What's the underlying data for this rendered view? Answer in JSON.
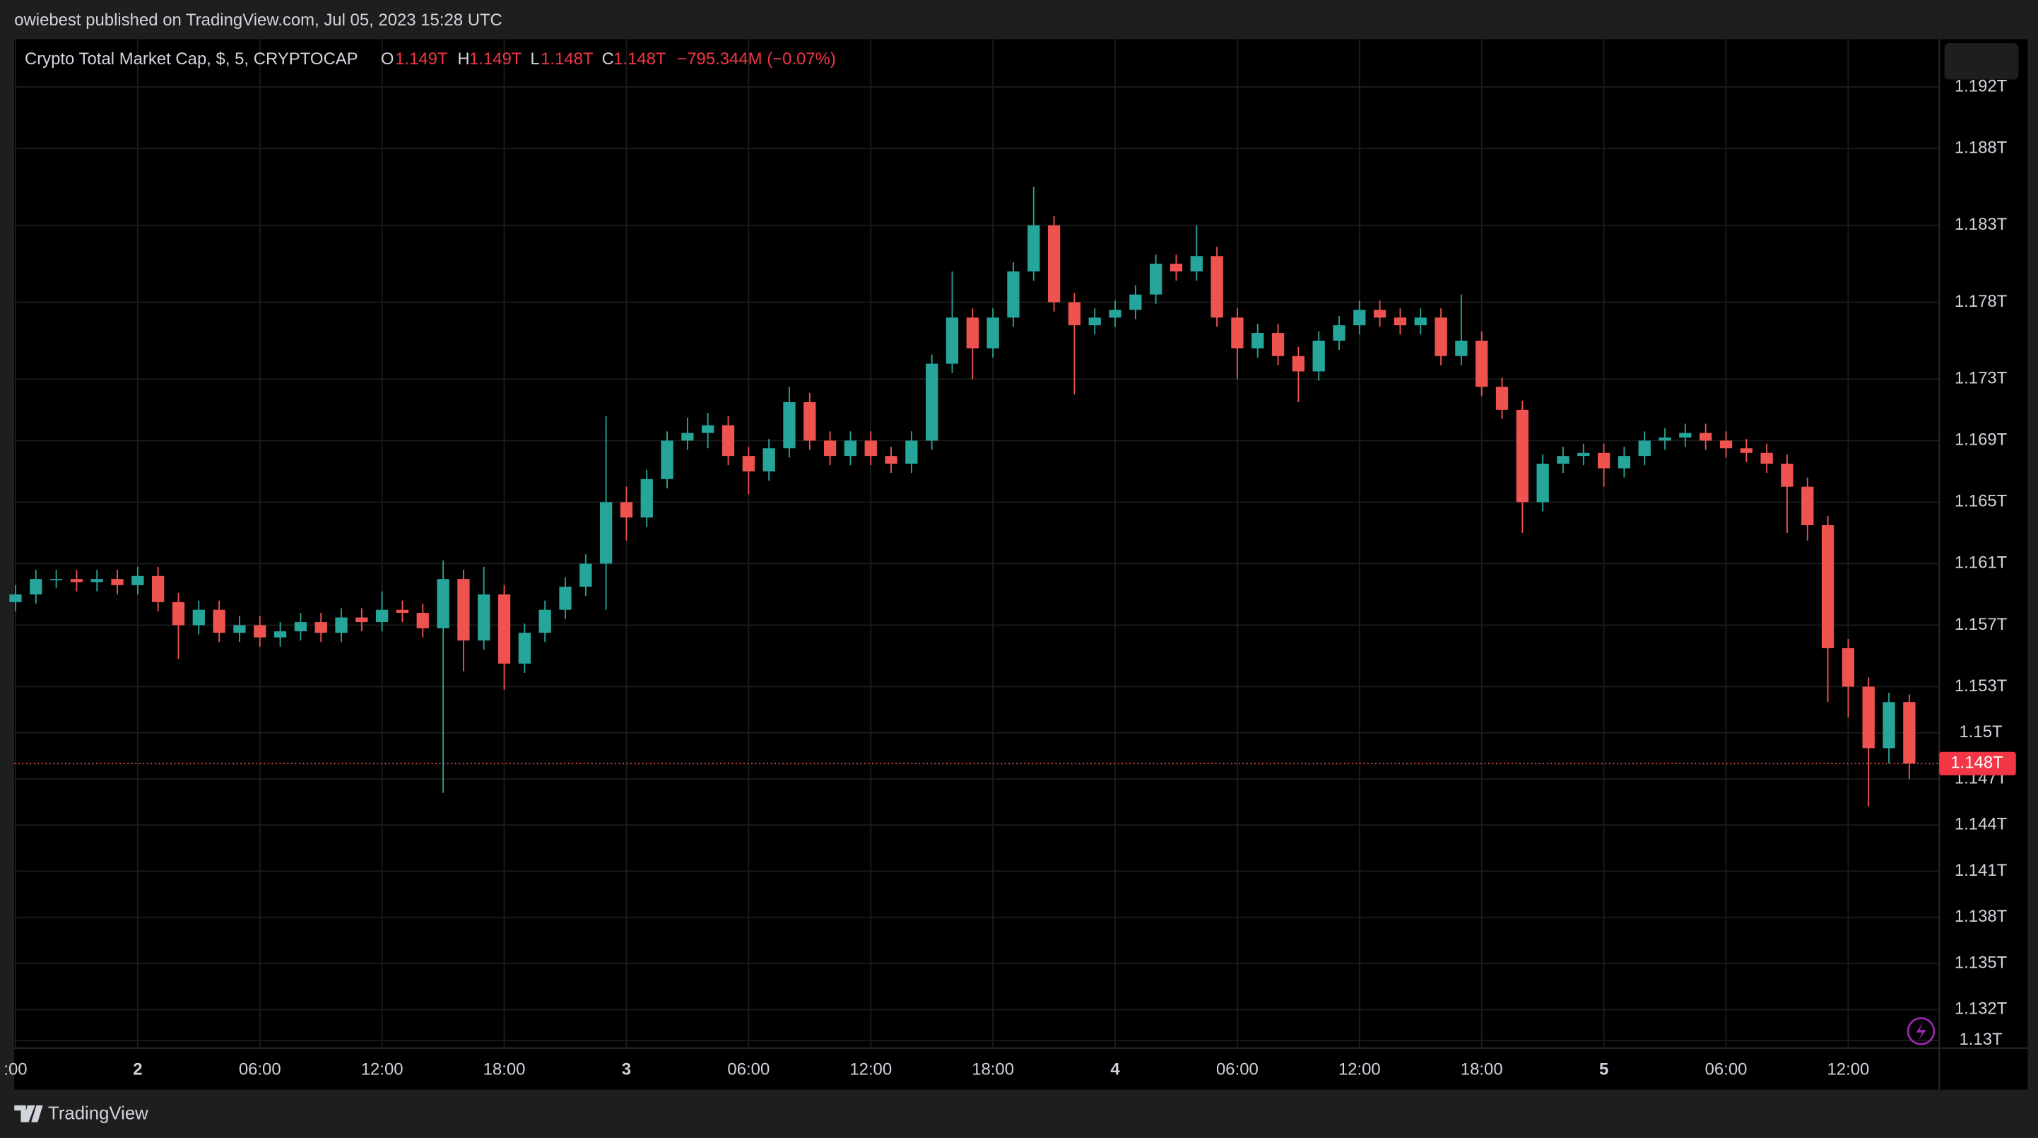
{
  "publisher_line": "owiebest published on TradingView.com, Jul 05, 2023 15:28 UTC",
  "footer_brand": "TradingView",
  "chart_data": {
    "type": "candlestick",
    "title": "Crypto Total Market Cap, $, 5, CRYPTOCAP",
    "ohlc_legend": [
      {
        "key": "O",
        "value": "1.149T"
      },
      {
        "key": "H",
        "value": "1.149T"
      },
      {
        "key": "L",
        "value": "1.148T"
      },
      {
        "key": "C",
        "value": "1.148T"
      }
    ],
    "change": "−795.344M (−0.07%)",
    "last_price": {
      "value": 1.148,
      "label": "1.148T"
    },
    "up_color": "#26a69a",
    "down_color": "#ef5350",
    "grid": true,
    "xlim": [
      -6.06,
      88.47
    ],
    "xticks": [
      {
        "value": -6,
        "label": ":00"
      },
      {
        "value": 0,
        "label": "2"
      },
      {
        "value": 6,
        "label": "06:00"
      },
      {
        "value": 12,
        "label": "12:00"
      },
      {
        "value": 18,
        "label": "18:00"
      },
      {
        "value": 24,
        "label": "3"
      },
      {
        "value": 30,
        "label": "06:00"
      },
      {
        "value": 36,
        "label": "12:00"
      },
      {
        "value": 42,
        "label": "18:00"
      },
      {
        "value": 48,
        "label": "4"
      },
      {
        "value": 54,
        "label": "06:00"
      },
      {
        "value": 60,
        "label": "12:00"
      },
      {
        "value": 66,
        "label": "18:00"
      },
      {
        "value": 72,
        "label": "5"
      },
      {
        "value": 78,
        "label": "06:00"
      },
      {
        "value": 84,
        "label": "12:00"
      }
    ],
    "ylim": [
      1.1295,
      1.1951
    ],
    "yticks": [
      {
        "value": 1.192,
        "label": "1.192T"
      },
      {
        "value": 1.188,
        "label": "1.188T"
      },
      {
        "value": 1.183,
        "label": "1.183T"
      },
      {
        "value": 1.178,
        "label": "1.178T"
      },
      {
        "value": 1.173,
        "label": "1.173T"
      },
      {
        "value": 1.169,
        "label": "1.169T"
      },
      {
        "value": 1.165,
        "label": "1.165T"
      },
      {
        "value": 1.161,
        "label": "1.161T"
      },
      {
        "value": 1.157,
        "label": "1.157T"
      },
      {
        "value": 1.153,
        "label": "1.153T"
      },
      {
        "value": 1.15,
        "label": "1.15T"
      },
      {
        "value": 1.147,
        "label": "1.147T"
      },
      {
        "value": 1.144,
        "label": "1.144T"
      },
      {
        "value": 1.141,
        "label": "1.141T"
      },
      {
        "value": 1.138,
        "label": "1.138T"
      },
      {
        "value": 1.135,
        "label": "1.135T"
      },
      {
        "value": 1.132,
        "label": "1.132T"
      },
      {
        "value": 1.13,
        "label": "1.13T"
      }
    ],
    "x": [
      -6,
      -5,
      -4,
      -3,
      -2,
      -1,
      0,
      1,
      2,
      3,
      4,
      5,
      6,
      7,
      8,
      9,
      10,
      11,
      12,
      13,
      14,
      15,
      16,
      17,
      18,
      19,
      20,
      21,
      22,
      23,
      24,
      25,
      26,
      27,
      28,
      29,
      30,
      31,
      32,
      33,
      34,
      35,
      36,
      37,
      38,
      39,
      40,
      41,
      42,
      43,
      44,
      45,
      46,
      47,
      48,
      49,
      50,
      51,
      52,
      53,
      54,
      55,
      56,
      57,
      58,
      59,
      60,
      61,
      62,
      63,
      64,
      65,
      66,
      67,
      68,
      69,
      70,
      71,
      72,
      73,
      74,
      75,
      76,
      77,
      78,
      79,
      80,
      81,
      82,
      83,
      84,
      85,
      86,
      87
    ],
    "open": [
      1.1585,
      1.159,
      1.16,
      1.16,
      1.1598,
      1.16,
      1.1596,
      1.1602,
      1.1585,
      1.157,
      1.158,
      1.1565,
      1.157,
      1.1562,
      1.1566,
      1.1572,
      1.1565,
      1.1575,
      1.1572,
      1.158,
      1.1578,
      1.1568,
      1.16,
      1.156,
      1.159,
      1.1545,
      1.1565,
      1.158,
      1.1595,
      1.161,
      1.165,
      1.164,
      1.1665,
      1.169,
      1.1695,
      1.17,
      1.168,
      1.167,
      1.1685,
      1.1715,
      1.169,
      1.168,
      1.169,
      1.168,
      1.1675,
      1.169,
      1.174,
      1.177,
      1.175,
      1.177,
      1.18,
      1.183,
      1.178,
      1.1765,
      1.177,
      1.1775,
      1.1785,
      1.1805,
      1.18,
      1.181,
      1.177,
      1.175,
      1.176,
      1.1745,
      1.1735,
      1.1755,
      1.1765,
      1.1775,
      1.177,
      1.1765,
      1.177,
      1.1745,
      1.1755,
      1.1725,
      1.171,
      1.165,
      1.1675,
      1.168,
      1.1682,
      1.1672,
      1.168,
      1.169,
      1.1692,
      1.1695,
      1.169,
      1.1685,
      1.1682,
      1.1675,
      1.166,
      1.1635,
      1.1555,
      1.153,
      1.149,
      1.152
    ],
    "high": [
      1.1596,
      1.1606,
      1.1606,
      1.1606,
      1.1606,
      1.1606,
      1.1608,
      1.1608,
      1.1591,
      1.1586,
      1.1586,
      1.1576,
      1.1576,
      1.1572,
      1.1578,
      1.1578,
      1.1581,
      1.1581,
      1.1592,
      1.1586,
      1.1584,
      1.1612,
      1.1606,
      1.1608,
      1.1596,
      1.1571,
      1.1586,
      1.1601,
      1.1616,
      1.1706,
      1.166,
      1.1671,
      1.1696,
      1.1705,
      1.1708,
      1.1706,
      1.1686,
      1.1691,
      1.1725,
      1.1721,
      1.1696,
      1.1696,
      1.1696,
      1.1686,
      1.1696,
      1.1746,
      1.18,
      1.1776,
      1.1776,
      1.1806,
      1.1855,
      1.1836,
      1.1786,
      1.1776,
      1.1781,
      1.1791,
      1.1811,
      1.1811,
      1.183,
      1.1816,
      1.1776,
      1.1766,
      1.1766,
      1.1751,
      1.1761,
      1.1771,
      1.1781,
      1.1781,
      1.1776,
      1.1776,
      1.1776,
      1.1785,
      1.1761,
      1.1731,
      1.1716,
      1.1681,
      1.1686,
      1.1688,
      1.1688,
      1.1686,
      1.1696,
      1.1698,
      1.1701,
      1.1701,
      1.1696,
      1.1691,
      1.1688,
      1.1681,
      1.1666,
      1.1641,
      1.1561,
      1.1536,
      1.1526,
      1.1525
    ],
    "low": [
      1.1579,
      1.1584,
      1.1594,
      1.1592,
      1.1592,
      1.159,
      1.159,
      1.1579,
      1.1548,
      1.1564,
      1.1559,
      1.1559,
      1.1556,
      1.1556,
      1.156,
      1.1559,
      1.1559,
      1.1566,
      1.1566,
      1.1572,
      1.1562,
      1.1461,
      1.154,
      1.1554,
      1.1528,
      1.1539,
      1.1559,
      1.1574,
      1.1589,
      1.158,
      1.1625,
      1.1634,
      1.1659,
      1.1684,
      1.1685,
      1.1674,
      1.1655,
      1.1664,
      1.1679,
      1.1684,
      1.1674,
      1.1674,
      1.1674,
      1.1669,
      1.1669,
      1.1684,
      1.1734,
      1.173,
      1.1744,
      1.1764,
      1.1794,
      1.1774,
      1.172,
      1.1759,
      1.1764,
      1.1769,
      1.1779,
      1.1794,
      1.1794,
      1.1764,
      1.173,
      1.1744,
      1.1739,
      1.1715,
      1.1729,
      1.1749,
      1.1759,
      1.1764,
      1.1759,
      1.1759,
      1.1739,
      1.1739,
      1.1719,
      1.1704,
      1.163,
      1.1644,
      1.1669,
      1.1674,
      1.166,
      1.1666,
      1.1674,
      1.1684,
      1.1686,
      1.1684,
      1.1679,
      1.1676,
      1.1669,
      1.163,
      1.1625,
      1.152,
      1.151,
      1.1452,
      1.148,
      1.147
    ],
    "close": [
      1.159,
      1.16,
      1.16,
      1.1598,
      1.16,
      1.1596,
      1.1602,
      1.1585,
      1.157,
      1.158,
      1.1565,
      1.157,
      1.1562,
      1.1566,
      1.1572,
      1.1565,
      1.1575,
      1.1572,
      1.158,
      1.1578,
      1.1568,
      1.16,
      1.156,
      1.159,
      1.1545,
      1.1565,
      1.158,
      1.1595,
      1.161,
      1.165,
      1.164,
      1.1665,
      1.169,
      1.1695,
      1.17,
      1.168,
      1.167,
      1.1685,
      1.1715,
      1.169,
      1.168,
      1.169,
      1.168,
      1.1675,
      1.169,
      1.174,
      1.177,
      1.175,
      1.177,
      1.18,
      1.183,
      1.178,
      1.1765,
      1.177,
      1.1775,
      1.1785,
      1.1805,
      1.18,
      1.181,
      1.177,
      1.175,
      1.176,
      1.1745,
      1.1735,
      1.1755,
      1.1765,
      1.1775,
      1.177,
      1.1765,
      1.177,
      1.1745,
      1.1755,
      1.1725,
      1.171,
      1.165,
      1.1675,
      1.168,
      1.1682,
      1.1672,
      1.168,
      1.169,
      1.1692,
      1.1695,
      1.169,
      1.1685,
      1.1682,
      1.1675,
      1.166,
      1.1635,
      1.1555,
      1.153,
      1.149,
      1.152,
      1.148
    ]
  }
}
